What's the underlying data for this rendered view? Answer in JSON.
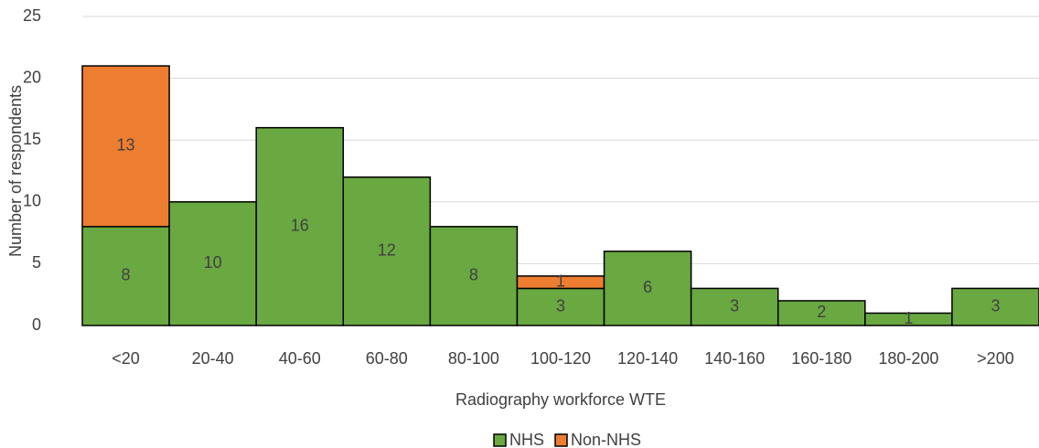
{
  "chart_data": {
    "type": "bar",
    "stacked": true,
    "x_label": "Radiography workforce WTE",
    "y_label": "Number of respondents",
    "categories": [
      "<20",
      "20-40",
      "40-60",
      "60-80",
      "80-100",
      "100-120",
      "120-140",
      "140-160",
      "160-180",
      "180-200",
      ">200"
    ],
    "series": [
      {
        "name": "NHS",
        "color": "#6aa842",
        "values": [
          8,
          10,
          16,
          12,
          8,
          3,
          6,
          3,
          2,
          1,
          3
        ]
      },
      {
        "name": "Non-NHS",
        "color": "#ed7d31",
        "values": [
          13,
          0,
          0,
          0,
          0,
          1,
          0,
          0,
          0,
          0,
          0
        ]
      }
    ],
    "ylim": [
      0,
      25
    ],
    "yticks": [
      0,
      5,
      10,
      15,
      20,
      25
    ],
    "grid": true,
    "legend": "bottom"
  }
}
